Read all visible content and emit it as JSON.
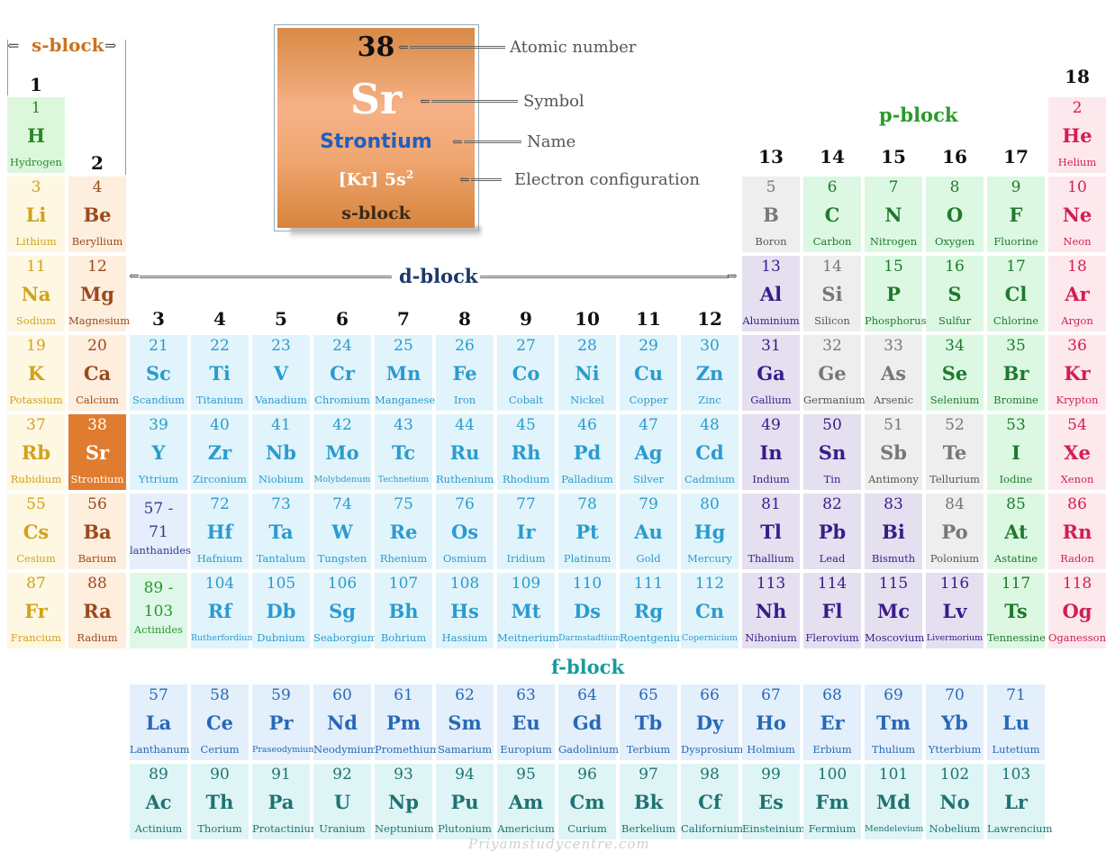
{
  "legend": {
    "number": "38",
    "symbol": "Sr",
    "name": "Strontium",
    "config": "[Kr] 5s",
    "config_sup": "2",
    "block": "s-block",
    "labels": {
      "atomic_number": "Atomic number",
      "symbol": "Symbol",
      "name": "Name",
      "electron_configuration": "Electron configuration"
    }
  },
  "blocks": {
    "s": "s-block",
    "p": "p-block",
    "d": "d-block",
    "f": "f-block"
  },
  "groups": [
    "1",
    "2",
    "3",
    "4",
    "5",
    "6",
    "7",
    "8",
    "9",
    "10",
    "11",
    "12",
    "13",
    "14",
    "15",
    "16",
    "17",
    "18"
  ],
  "series_labels": {
    "lanthanides_range_a": "57 -",
    "lanthanides_range_b": "71",
    "lanthanides": "lanthanides",
    "actinides_range_a": "89 -",
    "actinides_range_b": "103",
    "actinides": "Actinides"
  },
  "watermark": "Priyamstudycentre.com",
  "colors": {
    "s1": "#dcf7dc",
    "s2": "#fdeede",
    "d": "#e1f4fb",
    "f1": "#e3effb",
    "f2": "#dff5f5",
    "metalloid": "#eeeeee",
    "nonmetal": "#dcf8e3",
    "post_transition": "#e4e0f0",
    "noble": "#fde8ee",
    "alkali": "#fef7e2",
    "highlight": "#e07c2f"
  },
  "elements": [
    {
      "n": "1",
      "s": "H",
      "name": "Hydrogen",
      "cat": "hydrogen",
      "col": 1,
      "row": 1
    },
    {
      "n": "2",
      "s": "He",
      "name": "Helium",
      "cat": "noble",
      "col": 18,
      "row": 1
    },
    {
      "n": "3",
      "s": "Li",
      "name": "Lithium",
      "cat": "alkali",
      "col": 1,
      "row": 2
    },
    {
      "n": "4",
      "s": "Be",
      "name": "Beryllium",
      "cat": "alkaline",
      "col": 2,
      "row": 2
    },
    {
      "n": "5",
      "s": "B",
      "name": "Boron",
      "cat": "metalloid",
      "col": 13,
      "row": 2
    },
    {
      "n": "6",
      "s": "C",
      "name": "Carbon",
      "cat": "nonmetal",
      "col": 14,
      "row": 2
    },
    {
      "n": "7",
      "s": "N",
      "name": "Nitrogen",
      "cat": "nonmetal",
      "col": 15,
      "row": 2
    },
    {
      "n": "8",
      "s": "O",
      "name": "Oxygen",
      "cat": "nonmetal",
      "col": 16,
      "row": 2
    },
    {
      "n": "9",
      "s": "F",
      "name": "Fluorine",
      "cat": "nonmetal",
      "col": 17,
      "row": 2
    },
    {
      "n": "10",
      "s": "Ne",
      "name": "Neon",
      "cat": "noble",
      "col": 18,
      "row": 2
    },
    {
      "n": "11",
      "s": "Na",
      "name": "Sodium",
      "cat": "alkali",
      "col": 1,
      "row": 3
    },
    {
      "n": "12",
      "s": "Mg",
      "name": "Magnesium",
      "cat": "alkaline",
      "col": 2,
      "row": 3
    },
    {
      "n": "13",
      "s": "Al",
      "name": "Aluminium",
      "cat": "post",
      "col": 13,
      "row": 3
    },
    {
      "n": "14",
      "s": "Si",
      "name": "Silicon",
      "cat": "metalloid",
      "col": 14,
      "row": 3
    },
    {
      "n": "15",
      "s": "P",
      "name": "Phosphorus",
      "cat": "nonmetal",
      "col": 15,
      "row": 3
    },
    {
      "n": "16",
      "s": "S",
      "name": "Sulfur",
      "cat": "nonmetal",
      "col": 16,
      "row": 3
    },
    {
      "n": "17",
      "s": "Cl",
      "name": "Chlorine",
      "cat": "nonmetal",
      "col": 17,
      "row": 3
    },
    {
      "n": "18",
      "s": "Ar",
      "name": "Argon",
      "cat": "noble",
      "col": 18,
      "row": 3
    },
    {
      "n": "19",
      "s": "K",
      "name": "Potassium",
      "cat": "alkali",
      "col": 1,
      "row": 4
    },
    {
      "n": "20",
      "s": "Ca",
      "name": "Calcium",
      "cat": "alkaline",
      "col": 2,
      "row": 4
    },
    {
      "n": "21",
      "s": "Sc",
      "name": "Scandium",
      "cat": "d",
      "col": 3,
      "row": 4
    },
    {
      "n": "22",
      "s": "Ti",
      "name": "Titanium",
      "cat": "d",
      "col": 4,
      "row": 4
    },
    {
      "n": "23",
      "s": "V",
      "name": "Vanadium",
      "cat": "d",
      "col": 5,
      "row": 4
    },
    {
      "n": "24",
      "s": "Cr",
      "name": "Chromium",
      "cat": "d",
      "col": 6,
      "row": 4
    },
    {
      "n": "25",
      "s": "Mn",
      "name": "Manganese",
      "cat": "d",
      "col": 7,
      "row": 4
    },
    {
      "n": "26",
      "s": "Fe",
      "name": "Iron",
      "cat": "d",
      "col": 8,
      "row": 4
    },
    {
      "n": "27",
      "s": "Co",
      "name": "Cobalt",
      "cat": "d",
      "col": 9,
      "row": 4
    },
    {
      "n": "28",
      "s": "Ni",
      "name": "Nickel",
      "cat": "d",
      "col": 10,
      "row": 4
    },
    {
      "n": "29",
      "s": "Cu",
      "name": "Copper",
      "cat": "d",
      "col": 11,
      "row": 4
    },
    {
      "n": "30",
      "s": "Zn",
      "name": "Zinc",
      "cat": "d",
      "col": 12,
      "row": 4
    },
    {
      "n": "31",
      "s": "Ga",
      "name": "Gallium",
      "cat": "post",
      "col": 13,
      "row": 4
    },
    {
      "n": "32",
      "s": "Ge",
      "name": "Germanium",
      "cat": "metalloid",
      "col": 14,
      "row": 4
    },
    {
      "n": "33",
      "s": "As",
      "name": "Arsenic",
      "cat": "metalloid",
      "col": 15,
      "row": 4
    },
    {
      "n": "34",
      "s": "Se",
      "name": "Selenium",
      "cat": "nonmetal",
      "col": 16,
      "row": 4
    },
    {
      "n": "35",
      "s": "Br",
      "name": "Bromine",
      "cat": "nonmetal",
      "col": 17,
      "row": 4
    },
    {
      "n": "36",
      "s": "Kr",
      "name": "Krypton",
      "cat": "noble",
      "col": 18,
      "row": 4
    },
    {
      "n": "37",
      "s": "Rb",
      "name": "Rubidium",
      "cat": "alkali",
      "col": 1,
      "row": 5
    },
    {
      "n": "38",
      "s": "Sr",
      "name": "Strontium",
      "cat": "highlight",
      "col": 2,
      "row": 5
    },
    {
      "n": "39",
      "s": "Y",
      "name": "Yttrium",
      "cat": "d",
      "col": 3,
      "row": 5
    },
    {
      "n": "40",
      "s": "Zr",
      "name": "Zirconium",
      "cat": "d",
      "col": 4,
      "row": 5
    },
    {
      "n": "41",
      "s": "Nb",
      "name": "Niobium",
      "cat": "d",
      "col": 5,
      "row": 5
    },
    {
      "n": "42",
      "s": "Mo",
      "name": "Molybdenum",
      "cat": "d",
      "col": 6,
      "row": 5,
      "small": true
    },
    {
      "n": "43",
      "s": "Tc",
      "name": "Technetium",
      "cat": "d",
      "col": 7,
      "row": 5,
      "small": true
    },
    {
      "n": "44",
      "s": "Ru",
      "name": "Ruthenium",
      "cat": "d",
      "col": 8,
      "row": 5
    },
    {
      "n": "45",
      "s": "Rh",
      "name": "Rhodium",
      "cat": "d",
      "col": 9,
      "row": 5
    },
    {
      "n": "46",
      "s": "Pd",
      "name": "Palladium",
      "cat": "d",
      "col": 10,
      "row": 5
    },
    {
      "n": "47",
      "s": "Ag",
      "name": "Silver",
      "cat": "d",
      "col": 11,
      "row": 5
    },
    {
      "n": "48",
      "s": "Cd",
      "name": "Cadmium",
      "cat": "d",
      "col": 12,
      "row": 5
    },
    {
      "n": "49",
      "s": "In",
      "name": "Indium",
      "cat": "post",
      "col": 13,
      "row": 5
    },
    {
      "n": "50",
      "s": "Sn",
      "name": "Tin",
      "cat": "post",
      "col": 14,
      "row": 5
    },
    {
      "n": "51",
      "s": "Sb",
      "name": "Antimony",
      "cat": "metalloid",
      "col": 15,
      "row": 5
    },
    {
      "n": "52",
      "s": "Te",
      "name": "Tellurium",
      "cat": "metalloid",
      "col": 16,
      "row": 5
    },
    {
      "n": "53",
      "s": "I",
      "name": "Iodine",
      "cat": "nonmetal",
      "col": 17,
      "row": 5
    },
    {
      "n": "54",
      "s": "Xe",
      "name": "Xenon",
      "cat": "noble",
      "col": 18,
      "row": 5
    },
    {
      "n": "55",
      "s": "Cs",
      "name": "Cesium",
      "cat": "alkali",
      "col": 1,
      "row": 6
    },
    {
      "n": "56",
      "s": "Ba",
      "name": "Barium",
      "cat": "alkaline",
      "col": 2,
      "row": 6
    },
    {
      "n": "72",
      "s": "Hf",
      "name": "Hafnium",
      "cat": "d",
      "col": 4,
      "row": 6
    },
    {
      "n": "73",
      "s": "Ta",
      "name": "Tantalum",
      "cat": "d",
      "col": 5,
      "row": 6
    },
    {
      "n": "74",
      "s": "W",
      "name": "Tungsten",
      "cat": "d",
      "col": 6,
      "row": 6
    },
    {
      "n": "75",
      "s": "Re",
      "name": "Rhenium",
      "cat": "d",
      "col": 7,
      "row": 6
    },
    {
      "n": "76",
      "s": "Os",
      "name": "Osmium",
      "cat": "d",
      "col": 8,
      "row": 6
    },
    {
      "n": "77",
      "s": "Ir",
      "name": "Iridium",
      "cat": "d",
      "col": 9,
      "row": 6
    },
    {
      "n": "78",
      "s": "Pt",
      "name": "Platinum",
      "cat": "d",
      "col": 10,
      "row": 6
    },
    {
      "n": "79",
      "s": "Au",
      "name": "Gold",
      "cat": "d",
      "col": 11,
      "row": 6
    },
    {
      "n": "80",
      "s": "Hg",
      "name": "Mercury",
      "cat": "d",
      "col": 12,
      "row": 6
    },
    {
      "n": "81",
      "s": "Tl",
      "name": "Thallium",
      "cat": "post",
      "col": 13,
      "row": 6
    },
    {
      "n": "82",
      "s": "Pb",
      "name": "Lead",
      "cat": "post",
      "col": 14,
      "row": 6
    },
    {
      "n": "83",
      "s": "Bi",
      "name": "Bismuth",
      "cat": "post",
      "col": 15,
      "row": 6
    },
    {
      "n": "84",
      "s": "Po",
      "name": "Polonium",
      "cat": "metalloid",
      "col": 16,
      "row": 6
    },
    {
      "n": "85",
      "s": "At",
      "name": "Astatine",
      "cat": "nonmetal",
      "col": 17,
      "row": 6
    },
    {
      "n": "86",
      "s": "Rn",
      "name": "Radon",
      "cat": "noble",
      "col": 18,
      "row": 6
    },
    {
      "n": "87",
      "s": "Fr",
      "name": "Francium",
      "cat": "alkali",
      "col": 1,
      "row": 7
    },
    {
      "n": "88",
      "s": "Ra",
      "name": "Radium",
      "cat": "alkaline",
      "col": 2,
      "row": 7
    },
    {
      "n": "104",
      "s": "Rf",
      "name": "Rutherfordium",
      "cat": "d",
      "col": 4,
      "row": 7,
      "small": true
    },
    {
      "n": "105",
      "s": "Db",
      "name": "Dubnium",
      "cat": "d",
      "col": 5,
      "row": 7
    },
    {
      "n": "106",
      "s": "Sg",
      "name": "Seaborgium",
      "cat": "d",
      "col": 6,
      "row": 7
    },
    {
      "n": "107",
      "s": "Bh",
      "name": "Bohrium",
      "cat": "d",
      "col": 7,
      "row": 7
    },
    {
      "n": "108",
      "s": "Hs",
      "name": "Hassium",
      "cat": "d",
      "col": 8,
      "row": 7
    },
    {
      "n": "109",
      "s": "Mt",
      "name": "Meitnerium",
      "cat": "d",
      "col": 9,
      "row": 7
    },
    {
      "n": "110",
      "s": "Ds",
      "name": "Darmstadtium",
      "cat": "d",
      "col": 10,
      "row": 7,
      "small": true
    },
    {
      "n": "111",
      "s": "Rg",
      "name": "Roentgenium",
      "cat": "d",
      "col": 11,
      "row": 7
    },
    {
      "n": "112",
      "s": "Cn",
      "name": "Copernicium",
      "cat": "d",
      "col": 12,
      "row": 7,
      "small": true
    },
    {
      "n": "113",
      "s": "Nh",
      "name": "Nihonium",
      "cat": "post",
      "col": 13,
      "row": 7
    },
    {
      "n": "114",
      "s": "Fl",
      "name": "Flerovium",
      "cat": "post",
      "col": 14,
      "row": 7
    },
    {
      "n": "115",
      "s": "Mc",
      "name": "Moscovium",
      "cat": "post",
      "col": 15,
      "row": 7
    },
    {
      "n": "116",
      "s": "Lv",
      "name": "Livermorium",
      "cat": "post",
      "col": 16,
      "row": 7,
      "small": true
    },
    {
      "n": "117",
      "s": "Ts",
      "name": "Tennessine",
      "cat": "nonmetal",
      "col": 17,
      "row": 7
    },
    {
      "n": "118",
      "s": "Og",
      "name": "Oganesson",
      "cat": "noble",
      "col": 18,
      "row": 7
    },
    {
      "n": "57",
      "s": "La",
      "name": "Lanthanum",
      "cat": "f1",
      "col": 3,
      "row": 9
    },
    {
      "n": "58",
      "s": "Ce",
      "name": "Cerium",
      "cat": "f1",
      "col": 4,
      "row": 9
    },
    {
      "n": "59",
      "s": "Pr",
      "name": "Praseodymium",
      "cat": "f1",
      "col": 5,
      "row": 9,
      "small": true
    },
    {
      "n": "60",
      "s": "Nd",
      "name": "Neodymium",
      "cat": "f1",
      "col": 6,
      "row": 9
    },
    {
      "n": "61",
      "s": "Pm",
      "name": "Promethium",
      "cat": "f1",
      "col": 7,
      "row": 9
    },
    {
      "n": "62",
      "s": "Sm",
      "name": "Samarium",
      "cat": "f1",
      "col": 8,
      "row": 9
    },
    {
      "n": "63",
      "s": "Eu",
      "name": "Europium",
      "cat": "f1",
      "col": 9,
      "row": 9
    },
    {
      "n": "64",
      "s": "Gd",
      "name": "Gadolinium",
      "cat": "f1",
      "col": 10,
      "row": 9
    },
    {
      "n": "65",
      "s": "Tb",
      "name": "Terbium",
      "cat": "f1",
      "col": 11,
      "row": 9
    },
    {
      "n": "66",
      "s": "Dy",
      "name": "Dysprosium",
      "cat": "f1",
      "col": 12,
      "row": 9
    },
    {
      "n": "67",
      "s": "Ho",
      "name": "Holmium",
      "cat": "f1",
      "col": 13,
      "row": 9
    },
    {
      "n": "68",
      "s": "Er",
      "name": "Erbium",
      "cat": "f1",
      "col": 14,
      "row": 9
    },
    {
      "n": "69",
      "s": "Tm",
      "name": "Thulium",
      "cat": "f1",
      "col": 15,
      "row": 9
    },
    {
      "n": "70",
      "s": "Yb",
      "name": "Ytterbium",
      "cat": "f1",
      "col": 16,
      "row": 9
    },
    {
      "n": "71",
      "s": "Lu",
      "name": "Lutetium",
      "cat": "f1",
      "col": 17,
      "row": 9
    },
    {
      "n": "89",
      "s": "Ac",
      "name": "Actinium",
      "cat": "f2",
      "col": 3,
      "row": 10
    },
    {
      "n": "90",
      "s": "Th",
      "name": "Thorium",
      "cat": "f2",
      "col": 4,
      "row": 10
    },
    {
      "n": "91",
      "s": "Pa",
      "name": "Protactinium",
      "cat": "f2",
      "col": 5,
      "row": 10
    },
    {
      "n": "92",
      "s": "U",
      "name": "Uranium",
      "cat": "f2",
      "col": 6,
      "row": 10
    },
    {
      "n": "93",
      "s": "Np",
      "name": "Neptunium",
      "cat": "f2",
      "col": 7,
      "row": 10
    },
    {
      "n": "94",
      "s": "Pu",
      "name": "Plutonium",
      "cat": "f2",
      "col": 8,
      "row": 10
    },
    {
      "n": "95",
      "s": "Am",
      "name": "Americium",
      "cat": "f2",
      "col": 9,
      "row": 10
    },
    {
      "n": "96",
      "s": "Cm",
      "name": "Curium",
      "cat": "f2",
      "col": 10,
      "row": 10
    },
    {
      "n": "97",
      "s": "Bk",
      "name": "Berkelium",
      "cat": "f2",
      "col": 11,
      "row": 10
    },
    {
      "n": "98",
      "s": "Cf",
      "name": "Californium",
      "cat": "f2",
      "col": 12,
      "row": 10
    },
    {
      "n": "99",
      "s": "Es",
      "name": "Einsteinium",
      "cat": "f2",
      "col": 13,
      "row": 10
    },
    {
      "n": "100",
      "s": "Fm",
      "name": "Fermium",
      "cat": "f2",
      "col": 14,
      "row": 10
    },
    {
      "n": "101",
      "s": "Md",
      "name": "Mendelevium",
      "cat": "f2",
      "col": 15,
      "row": 10,
      "small": true
    },
    {
      "n": "102",
      "s": "No",
      "name": "Nobelium",
      "cat": "f2",
      "col": 16,
      "row": 10
    },
    {
      "n": "103",
      "s": "Lr",
      "name": "Lawrencium",
      "cat": "f2",
      "col": 17,
      "row": 10
    }
  ]
}
